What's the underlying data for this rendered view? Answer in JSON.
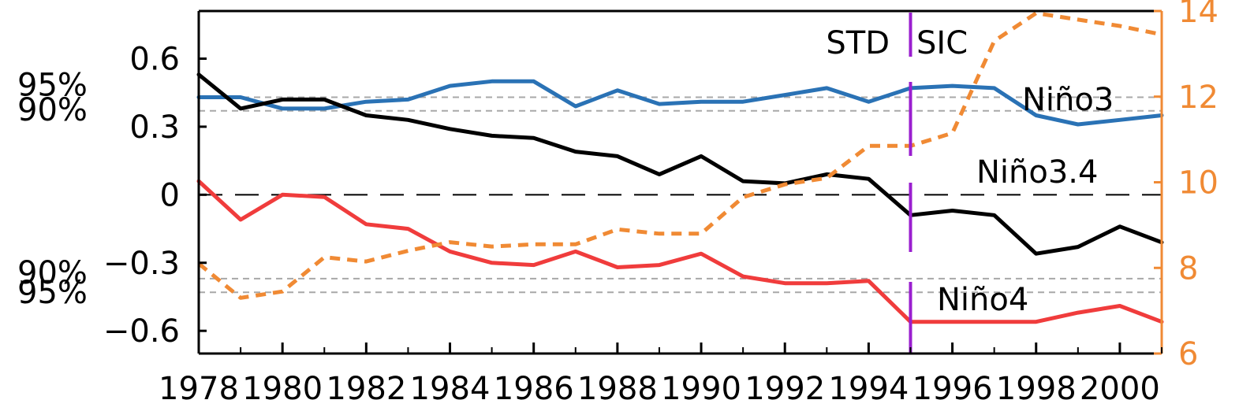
{
  "chart_data": {
    "type": "line",
    "title": "",
    "x": [
      1978,
      1979,
      1980,
      1981,
      1982,
      1983,
      1984,
      1985,
      1986,
      1987,
      1988,
      1989,
      1990,
      1991,
      1992,
      1993,
      1994,
      1995,
      1996,
      1997,
      1998,
      1999,
      2000,
      2001
    ],
    "xlim": [
      1978,
      2001
    ],
    "x_ticks": [
      1978,
      1980,
      1982,
      1984,
      1986,
      1988,
      1990,
      1992,
      1994,
      1996,
      1998,
      2000
    ],
    "ylim_left": [
      -0.7,
      0.81
    ],
    "y_ticks_left": [
      -0.6,
      -0.3,
      0,
      0.3,
      0.6
    ],
    "y_tick_labels_left": [
      "−0.6",
      "−0.3",
      "0",
      "0.3",
      "0.6"
    ],
    "ylim_right": [
      6,
      14
    ],
    "y_ticks_right": [
      6,
      8,
      10,
      12,
      14
    ],
    "y_tick_labels_right": [
      "6",
      "8",
      "10",
      "12",
      "14"
    ],
    "series": [
      {
        "name": "Niño3",
        "axis": "left",
        "color": "#2a72b5",
        "style": "solid",
        "values": [
          0.43,
          0.43,
          0.38,
          0.38,
          0.41,
          0.42,
          0.48,
          0.5,
          0.5,
          0.39,
          0.46,
          0.4,
          0.41,
          0.41,
          0.44,
          0.47,
          0.41,
          0.47,
          0.48,
          0.47,
          0.35,
          0.31,
          0.33,
          0.35
        ]
      },
      {
        "name": "Niño3.4",
        "axis": "left",
        "color": "#000000",
        "style": "solid",
        "values": [
          0.53,
          0.38,
          0.42,
          0.42,
          0.35,
          0.33,
          0.29,
          0.26,
          0.25,
          0.19,
          0.17,
          0.09,
          0.17,
          0.06,
          0.05,
          0.09,
          0.07,
          -0.09,
          -0.07,
          -0.09,
          -0.26,
          -0.23,
          -0.14,
          -0.21
        ]
      },
      {
        "name": "Niño4",
        "axis": "left",
        "color": "#f03c3c",
        "style": "solid",
        "values": [
          0.06,
          -0.11,
          0.0,
          -0.01,
          -0.13,
          -0.15,
          -0.25,
          -0.3,
          -0.31,
          -0.25,
          -0.32,
          -0.31,
          -0.26,
          -0.36,
          -0.39,
          -0.39,
          -0.38,
          -0.56,
          -0.56,
          -0.56,
          -0.56,
          -0.52,
          -0.49,
          -0.56
        ]
      },
      {
        "name": "SIC",
        "axis": "right",
        "color": "#f08a34",
        "style": "dashed",
        "values": [
          8.1,
          7.3,
          7.45,
          8.25,
          8.15,
          8.4,
          8.6,
          8.5,
          8.55,
          8.55,
          8.9,
          8.8,
          8.8,
          9.65,
          9.95,
          10.1,
          10.85,
          10.85,
          11.15,
          13.3,
          13.95,
          13.8,
          13.65,
          13.45
        ]
      }
    ],
    "zero_line": {
      "value": 0,
      "style": "long-dash",
      "color": "#000000"
    },
    "significance_lines": [
      {
        "label": "95%",
        "value": 0.43
      },
      {
        "label": "90%",
        "value": 0.37
      },
      {
        "label": "90%",
        "value": -0.37
      },
      {
        "label": "95%",
        "value": -0.43
      }
    ],
    "vertical_marker": {
      "x": 1995,
      "color": "#9a1ecf"
    },
    "annotations": {
      "left_of_marker": "STD",
      "right_of_marker": "SIC"
    },
    "right_axis_color": "#f08a34",
    "grid": false,
    "legend": "inline labels"
  }
}
